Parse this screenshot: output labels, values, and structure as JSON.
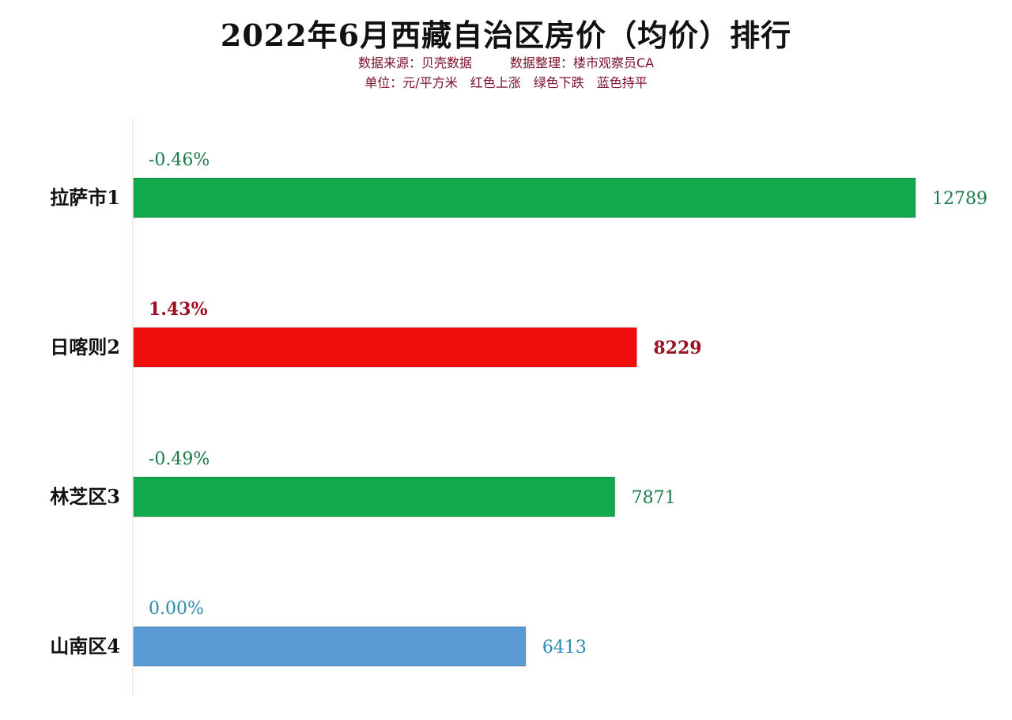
{
  "chart_data": {
    "type": "bar",
    "orientation": "horizontal",
    "title": "2022年6月西藏自治区房价（均价）排行",
    "subtitle": "数据来源：贝壳数据　　　数据整理：楼市观察员CA",
    "note": "单位：元/平方米　红色上涨　绿色下跌　蓝色持平",
    "xlim": [
      0,
      12789
    ],
    "grid": false,
    "legend": "none",
    "categories": [
      "拉萨市1",
      "日喀则2",
      "林芝区3",
      "山南区4"
    ],
    "values": [
      12789,
      8229,
      7871,
      6413
    ],
    "value_labels": [
      "12789",
      "8229",
      "7871",
      "6413"
    ],
    "changes": [
      "-0.46%",
      "1.43%",
      "-0.49%",
      "0.00%"
    ],
    "trend": [
      "down",
      "up",
      "down",
      "flat"
    ],
    "colors": {
      "down": "#12a84c",
      "up": "#f20d0d",
      "flat": "#5b9bd5",
      "down_text": "#1a7a4a",
      "up_text": "#9b1022",
      "flat_text": "#2a8ab0"
    }
  }
}
